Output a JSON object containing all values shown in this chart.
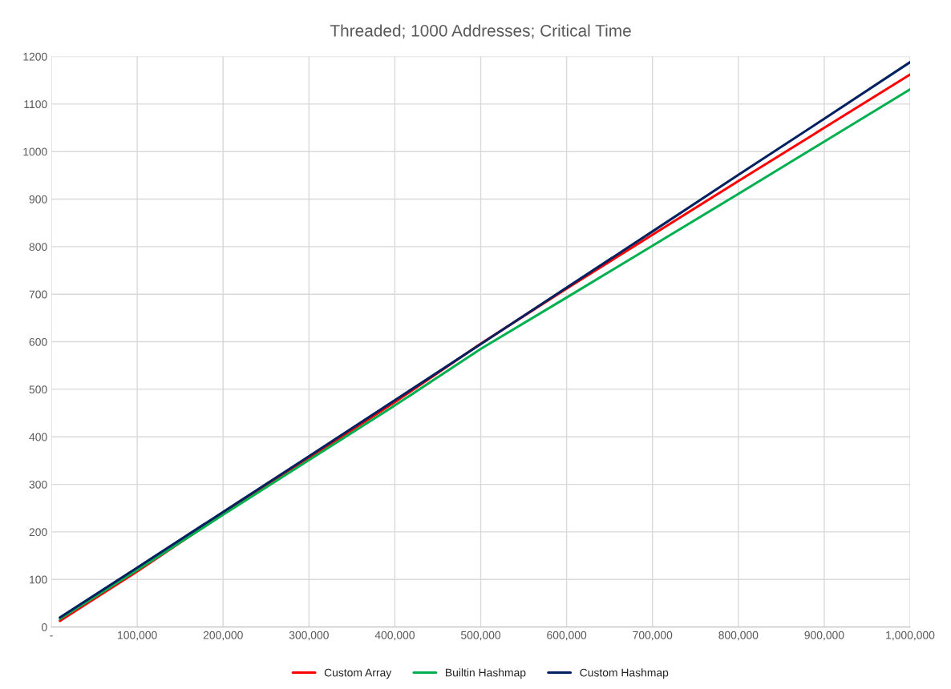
{
  "chart_data": {
    "type": "line",
    "title": "Threaded; 1000 Addresses; Critical Time",
    "x": [
      10000,
      100000,
      200000,
      300000,
      400000,
      500000,
      600000,
      700000,
      800000,
      900000,
      1000000
    ],
    "series": [
      {
        "name": "Custom Array",
        "color": "#ff0000",
        "values": [
          13,
          117,
          238,
          355,
          473,
          596,
          712,
          825,
          938,
          1050,
          1162
        ]
      },
      {
        "name": "Builtin Hashmap",
        "color": "#00b050",
        "values": [
          17,
          120,
          236,
          351,
          466,
          585,
          693,
          802,
          911,
          1021,
          1131
        ]
      },
      {
        "name": "Custom Hashmap",
        "color": "#002060",
        "values": [
          20,
          125,
          242,
          359,
          477,
          595,
          714,
          832,
          951,
          1069,
          1188
        ]
      }
    ],
    "xlim": [
      0,
      1000000
    ],
    "xticks": [
      {
        "value": 0,
        "label": "-"
      },
      {
        "value": 100000,
        "label": "100,000"
      },
      {
        "value": 200000,
        "label": "200,000"
      },
      {
        "value": 300000,
        "label": "300,000"
      },
      {
        "value": 400000,
        "label": "400,000"
      },
      {
        "value": 500000,
        "label": "500,000"
      },
      {
        "value": 600000,
        "label": "600,000"
      },
      {
        "value": 700000,
        "label": "700,000"
      },
      {
        "value": 800000,
        "label": "800,000"
      },
      {
        "value": 900000,
        "label": "900,000"
      },
      {
        "value": 1000000,
        "label": "1,000,000"
      }
    ],
    "ylim": [
      0,
      1200
    ],
    "yticks": [
      0,
      100,
      200,
      300,
      400,
      500,
      600,
      700,
      800,
      900,
      1000,
      1100,
      1200
    ],
    "grid": true,
    "legend": "bottom",
    "marker": "none",
    "line_style": "solid"
  }
}
